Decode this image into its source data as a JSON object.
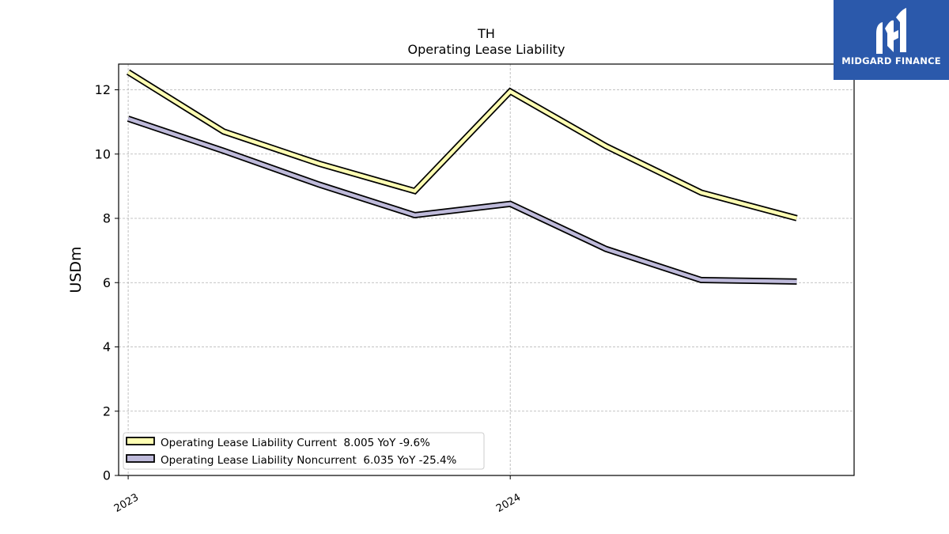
{
  "logo": {
    "text": "MIDGARD FINANCE",
    "icon": "midgard-logo-icon",
    "color": "#2b59ab"
  },
  "chart_data": {
    "type": "line",
    "title": "TH",
    "subtitle": "Operating Lease Liability",
    "xlabel": "",
    "ylabel": "USDm",
    "ylim": [
      0,
      12.8
    ],
    "yticks": [
      0,
      2,
      4,
      6,
      8,
      10,
      12
    ],
    "xticks": [
      {
        "label": "2023",
        "x": 0
      },
      {
        "label": "2024",
        "x": 4
      }
    ],
    "x": [
      0,
      1,
      2,
      3,
      4,
      5,
      6,
      7
    ],
    "grid": true,
    "legend_position": "lower-left",
    "series": [
      {
        "name": "Operating Lease Liability Current  8.005 YoY -9.6%",
        "values": [
          12.55,
          10.7,
          9.7,
          8.85,
          11.95,
          10.25,
          8.8,
          8.005
        ],
        "color": "#ffffb3"
      },
      {
        "name": "Operating Lease Liability Noncurrent  6.035 YoY -25.4%",
        "values": [
          11.1,
          10.1,
          9.05,
          8.1,
          8.45,
          7.05,
          6.08,
          6.035
        ],
        "color": "#bebada"
      }
    ]
  }
}
